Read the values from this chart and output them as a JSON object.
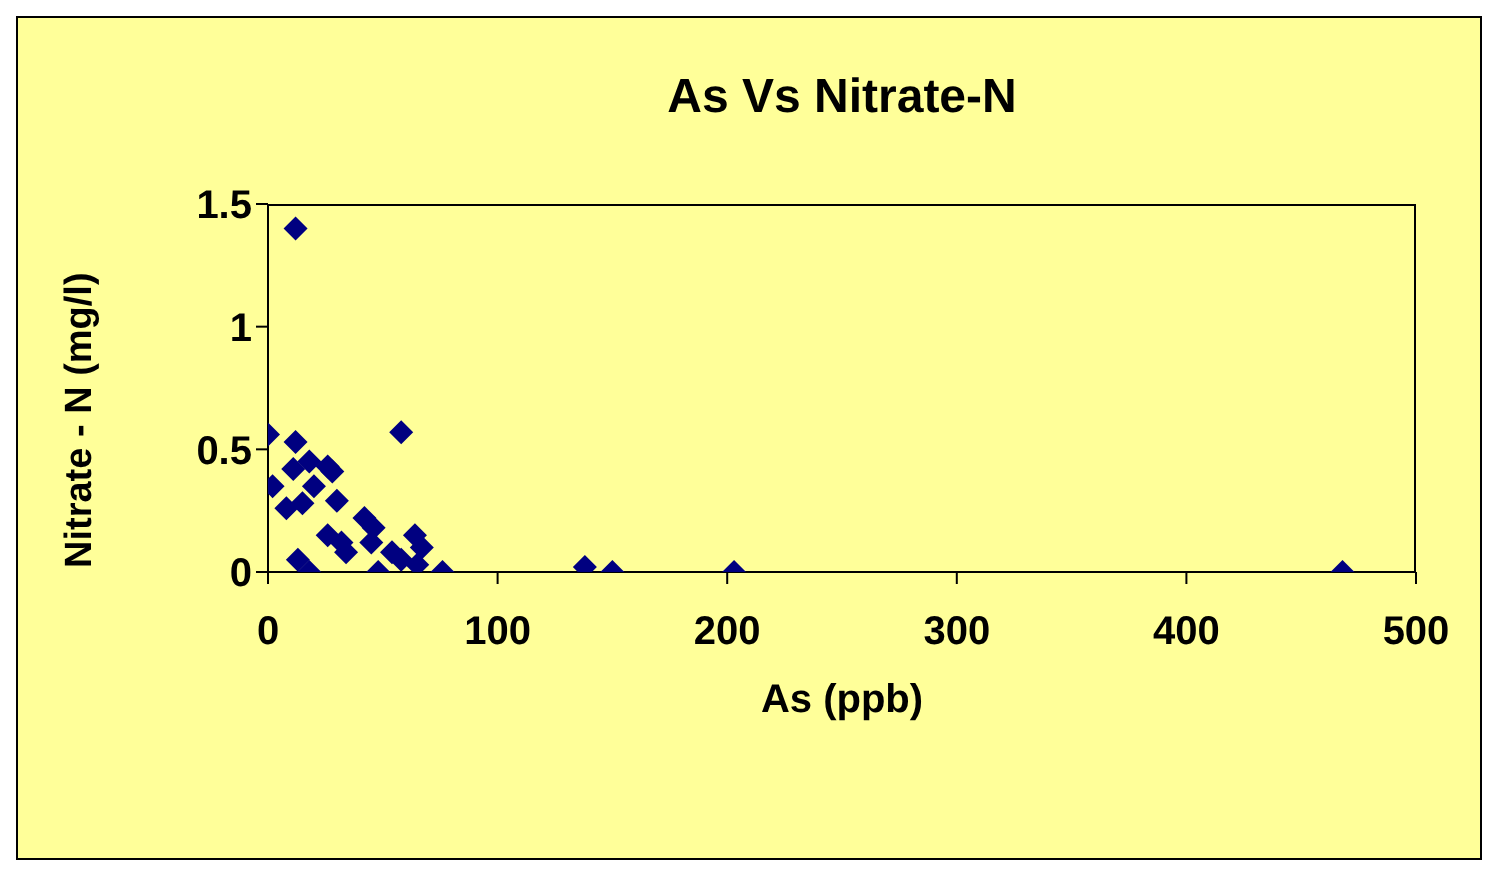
{
  "chart_data": {
    "type": "scatter",
    "title": "As Vs Nitrate-N",
    "xlabel": "As (ppb)",
    "ylabel": "Nitrate - N (mg/l)",
    "xlim": [
      0,
      500
    ],
    "xticks": [
      0,
      100,
      200,
      300,
      400,
      500
    ],
    "ylim": [
      0,
      1.5
    ],
    "yticks": [
      0,
      0.5,
      1,
      1.5
    ],
    "legend": false,
    "marker": "diamond",
    "series": [
      {
        "color": "#000080",
        "x": [
          12,
          0,
          12,
          58,
          2,
          11,
          18,
          26,
          28,
          8,
          15,
          20,
          30,
          26,
          32,
          34,
          42,
          46,
          45,
          54,
          58,
          64,
          67,
          65,
          76,
          48,
          18,
          13,
          138,
          150,
          203,
          468
        ],
        "values": [
          1.4,
          0.56,
          0.53,
          0.57,
          0.35,
          0.42,
          0.45,
          0.43,
          0.41,
          0.26,
          0.28,
          0.35,
          0.29,
          0.15,
          0.12,
          0.08,
          0.22,
          0.18,
          0.12,
          0.08,
          0.05,
          0.15,
          0.1,
          0.03,
          0,
          0,
          0,
          0.05,
          0.02,
          0,
          0,
          0
        ]
      }
    ]
  }
}
